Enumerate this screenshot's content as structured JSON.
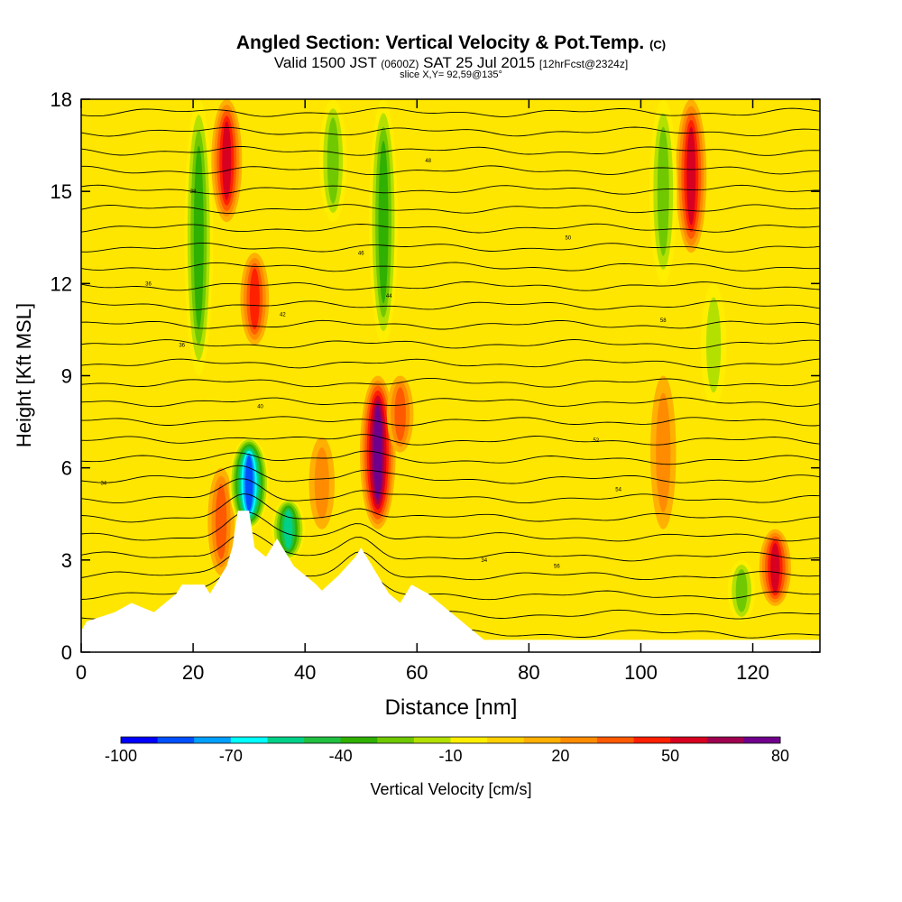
{
  "header": {
    "title": "Angled Section: Vertical Velocity & Pot.Temp.",
    "title_tag": "(C)",
    "valid_prefix": "Valid 1500 JST",
    "valid_utc": "(0600Z)",
    "valid_date": "SAT 25 Jul 2015",
    "forecast": "[12hrFcst@2324z]",
    "slice": "slice X,Y= 92,59@135°"
  },
  "chart_data": {
    "type": "heatmap",
    "title": "Angled Section: Vertical Velocity & Pot.Temp.",
    "xlabel": "Distance [nm]",
    "ylabel": "Height [Kft MSL]",
    "xlim": [
      0,
      132
    ],
    "ylim": [
      0,
      18
    ],
    "x_ticks": [
      0,
      20,
      40,
      60,
      80,
      100,
      120
    ],
    "y_ticks": [
      0,
      3,
      6,
      9,
      12,
      15,
      18
    ],
    "grid": false,
    "colorbar": {
      "label": "Vertical Velocity [cm/s]",
      "min": -100,
      "max": 80,
      "step": 10,
      "tick_labels": [
        "-100",
        "-70",
        "-40",
        "-10",
        "20",
        "50",
        "80"
      ],
      "colors": [
        "#0000ff",
        "#0050ff",
        "#00a0ff",
        "#00ffff",
        "#00d088",
        "#20c040",
        "#30b000",
        "#70c800",
        "#b4e000",
        "#ffee00",
        "#ffd000",
        "#ffb000",
        "#ff8c00",
        "#ff5a00",
        "#ff2000",
        "#d80020",
        "#a00050",
        "#70008c"
      ]
    },
    "terrain_kft": [
      [
        0,
        0.7
      ],
      [
        1,
        1.0
      ],
      [
        6,
        1.3
      ],
      [
        9,
        1.6
      ],
      [
        13,
        1.3
      ],
      [
        15,
        1.6
      ],
      [
        17,
        1.9
      ],
      [
        18,
        2.2
      ],
      [
        22,
        2.2
      ],
      [
        23,
        1.9
      ],
      [
        24,
        2.2
      ],
      [
        26,
        2.8
      ],
      [
        27,
        3.4
      ],
      [
        28,
        4.6
      ],
      [
        30,
        4.6
      ],
      [
        31,
        3.4
      ],
      [
        33,
        3.1
      ],
      [
        34,
        3.4
      ],
      [
        35,
        3.7
      ],
      [
        36,
        3.4
      ],
      [
        37,
        3.1
      ],
      [
        38,
        2.8
      ],
      [
        40,
        2.5
      ],
      [
        42,
        2.2
      ],
      [
        43,
        2.0
      ],
      [
        46,
        2.5
      ],
      [
        49,
        3.1
      ],
      [
        50,
        3.4
      ],
      [
        51,
        3.1
      ],
      [
        52,
        2.8
      ],
      [
        53,
        2.5
      ],
      [
        54,
        2.2
      ],
      [
        55,
        1.9
      ],
      [
        57,
        1.6
      ],
      [
        59,
        2.2
      ],
      [
        62,
        1.9
      ],
      [
        64,
        1.6
      ],
      [
        66,
        1.3
      ],
      [
        68,
        1.0
      ],
      [
        70,
        0.7
      ],
      [
        72,
        0.4
      ],
      [
        132,
        0.4
      ]
    ],
    "updraft_cores": [
      {
        "x": 26,
        "z0": 14,
        "z1": 18,
        "w": 45
      },
      {
        "x": 31,
        "z0": 10,
        "z1": 13,
        "w": 35
      },
      {
        "x": 53,
        "z0": 4,
        "z1": 9,
        "w": 70
      },
      {
        "x": 57,
        "z0": 6.5,
        "z1": 9,
        "w": 25
      },
      {
        "x": 43,
        "z0": 4,
        "z1": 7,
        "w": 20
      },
      {
        "x": 109,
        "z0": 13,
        "z1": 18,
        "w": 45
      },
      {
        "x": 124,
        "z0": 1.5,
        "z1": 4,
        "w": 50
      },
      {
        "x": 25,
        "z0": 2.5,
        "z1": 6,
        "w": 25
      },
      {
        "x": 104,
        "z0": 4,
        "z1": 9,
        "w": 20
      }
    ],
    "downdraft_cores": [
      {
        "x": 30,
        "z0": 4,
        "z1": 7,
        "w": -90
      },
      {
        "x": 21,
        "z0": 9,
        "z1": 18,
        "w": -35
      },
      {
        "x": 45,
        "z0": 14,
        "z1": 18,
        "w": -30
      },
      {
        "x": 54,
        "z0": 10,
        "z1": 18,
        "w": -35
      },
      {
        "x": 37,
        "z0": 3,
        "z1": 5,
        "w": -60
      },
      {
        "x": 104,
        "z0": 12,
        "z1": 18,
        "w": -30
      },
      {
        "x": 113,
        "z0": 8,
        "z1": 12,
        "w": -20
      },
      {
        "x": 118,
        "z0": 1,
        "z1": 3,
        "w": -30
      }
    ],
    "theta_label_values": [
      "34",
      "36",
      "38",
      "40",
      "42",
      "44",
      "46",
      "48",
      "50",
      "52",
      "54",
      "56",
      "58"
    ],
    "isentrope_count": 28
  }
}
